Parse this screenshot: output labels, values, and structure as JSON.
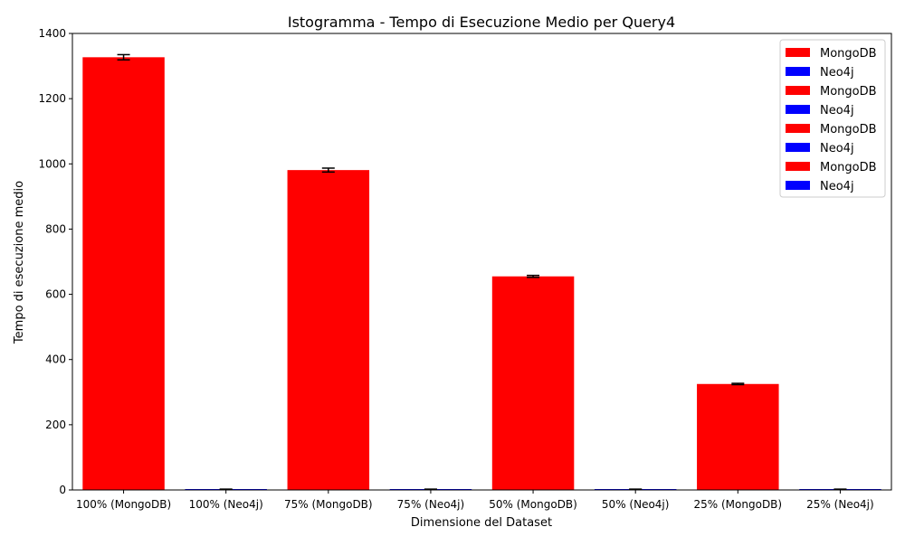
{
  "chart_data": {
    "type": "bar",
    "title": "Istogramma - Tempo di Esecuzione Medio per Query4",
    "xlabel": "Dimensione del Dataset",
    "ylabel": "Tempo di esecuzione medio",
    "ylim": [
      0,
      1400
    ],
    "yticks": [
      0,
      200,
      400,
      600,
      800,
      1000,
      1200,
      1400
    ],
    "grid": false,
    "legend_position": "top-right",
    "categories": [
      "100% (MongoDB)",
      "100% (Neo4j)",
      "75% (MongoDB)",
      "75% (Neo4j)",
      "50% (MongoDB)",
      "50% (Neo4j)",
      "25% (MongoDB)",
      "25% (Neo4j)"
    ],
    "values": [
      1327,
      2,
      981,
      2,
      655,
      2,
      325,
      2
    ],
    "errors": [
      8,
      0.5,
      6,
      0.5,
      3,
      0.5,
      2,
      0.5
    ],
    "bar_colors": [
      "#ff0000",
      "#0000ff",
      "#ff0000",
      "#0000ff",
      "#ff0000",
      "#0000ff",
      "#ff0000",
      "#0000ff"
    ],
    "legend": [
      {
        "label": "MongoDB",
        "color": "#ff0000"
      },
      {
        "label": "Neo4j",
        "color": "#0000ff"
      },
      {
        "label": "MongoDB",
        "color": "#ff0000"
      },
      {
        "label": "Neo4j",
        "color": "#0000ff"
      },
      {
        "label": "MongoDB",
        "color": "#ff0000"
      },
      {
        "label": "Neo4j",
        "color": "#0000ff"
      },
      {
        "label": "MongoDB",
        "color": "#ff0000"
      },
      {
        "label": "Neo4j",
        "color": "#0000ff"
      }
    ]
  }
}
